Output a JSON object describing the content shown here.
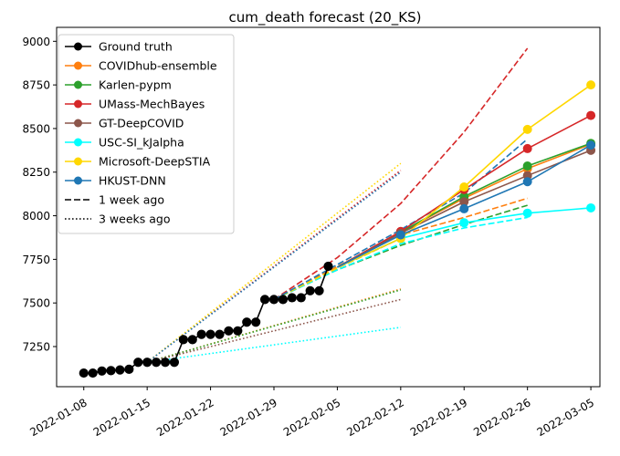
{
  "chart_data": {
    "type": "line",
    "title": "cum_death forecast (20_KS)",
    "xlabel": "",
    "ylabel": "",
    "xlim": [
      "2022-01-05",
      "2022-03-06"
    ],
    "ylim": [
      7020,
      9080
    ],
    "x_ticks": [
      "2022-01-08",
      "2022-01-15",
      "2022-01-22",
      "2022-01-29",
      "2022-02-05",
      "2022-02-12",
      "2022-02-19",
      "2022-02-26",
      "2022-03-05"
    ],
    "y_ticks": [
      7250,
      7500,
      7750,
      8000,
      8250,
      8500,
      8750,
      9000
    ],
    "legend_position": "top-left",
    "legend": [
      {
        "label": "Ground truth",
        "color": "#000000",
        "style": "solid",
        "marker": true
      },
      {
        "label": "COVIDhub-ensemble",
        "color": "#ff7f0e",
        "style": "solid",
        "marker": true
      },
      {
        "label": "Karlen-pypm",
        "color": "#2ca02c",
        "style": "solid",
        "marker": true
      },
      {
        "label": "UMass-MechBayes",
        "color": "#d62728",
        "style": "solid",
        "marker": true
      },
      {
        "label": "GT-DeepCOVID",
        "color": "#8c564b",
        "style": "solid",
        "marker": true
      },
      {
        "label": "USC-SI_kJalpha",
        "color": "#00ffff",
        "style": "solid",
        "marker": true
      },
      {
        "label": "Microsoft-DeepSTIA",
        "color": "#ffd700",
        "style": "solid",
        "marker": true
      },
      {
        "label": "HKUST-DNN",
        "color": "#1f77b4",
        "style": "solid",
        "marker": true
      },
      {
        "label": "1 week ago",
        "color": "#000000",
        "style": "dashed",
        "marker": false
      },
      {
        "label": "3 weeks ago",
        "color": "#000000",
        "style": "dotted",
        "marker": false
      }
    ],
    "ground_truth": {
      "color": "#000000",
      "points": [
        [
          "2022-01-08",
          7098
        ],
        [
          "2022-01-09",
          7098
        ],
        [
          "2022-01-10",
          7110
        ],
        [
          "2022-01-11",
          7112
        ],
        [
          "2022-01-12",
          7116
        ],
        [
          "2022-01-13",
          7120
        ],
        [
          "2022-01-14",
          7160
        ],
        [
          "2022-01-15",
          7160
        ],
        [
          "2022-01-16",
          7160
        ],
        [
          "2022-01-17",
          7160
        ],
        [
          "2022-01-18",
          7160
        ],
        [
          "2022-01-19",
          7290
        ],
        [
          "2022-01-20",
          7290
        ],
        [
          "2022-01-21",
          7320
        ],
        [
          "2022-01-22",
          7320
        ],
        [
          "2022-01-23",
          7320
        ],
        [
          "2022-01-24",
          7340
        ],
        [
          "2022-01-25",
          7340
        ],
        [
          "2022-01-26",
          7390
        ],
        [
          "2022-01-27",
          7390
        ],
        [
          "2022-01-28",
          7520
        ],
        [
          "2022-01-29",
          7520
        ],
        [
          "2022-01-30",
          7520
        ],
        [
          "2022-01-31",
          7530
        ],
        [
          "2022-02-01",
          7530
        ],
        [
          "2022-02-02",
          7570
        ],
        [
          "2022-02-03",
          7570
        ],
        [
          "2022-02-04",
          7710
        ]
      ]
    },
    "series": [
      {
        "name": "COVIDhub-ensemble",
        "color": "#ff7f0e",
        "current": [
          [
            "2022-02-05",
            7705
          ],
          [
            "2022-02-12",
            7905
          ],
          [
            "2022-02-19",
            8100
          ],
          [
            "2022-02-26",
            8270
          ],
          [
            "2022-03-05",
            8410
          ]
        ],
        "week_ago": [
          [
            "2022-01-29",
            7520
          ],
          [
            "2022-02-05",
            7710
          ],
          [
            "2022-02-12",
            7890
          ],
          [
            "2022-02-19",
            7990
          ],
          [
            "2022-02-26",
            8100
          ]
        ],
        "three_weeks_ago": [
          [
            "2022-01-15",
            7160
          ],
          [
            "2022-02-12",
            7580
          ]
        ]
      },
      {
        "name": "Karlen-pypm",
        "color": "#2ca02c",
        "current": [
          [
            "2022-02-05",
            7705
          ],
          [
            "2022-02-12",
            7905
          ],
          [
            "2022-02-19",
            8110
          ],
          [
            "2022-02-26",
            8285
          ],
          [
            "2022-03-05",
            8415
          ]
        ],
        "week_ago": [
          [
            "2022-01-29",
            7520
          ],
          [
            "2022-02-05",
            7690
          ],
          [
            "2022-02-12",
            7830
          ],
          [
            "2022-02-19",
            7950
          ],
          [
            "2022-02-26",
            8060
          ]
        ],
        "three_weeks_ago": [
          [
            "2022-01-15",
            7160
          ],
          [
            "2022-02-12",
            7575
          ]
        ]
      },
      {
        "name": "UMass-MechBayes",
        "color": "#d62728",
        "current": [
          [
            "2022-02-05",
            7705
          ],
          [
            "2022-02-12",
            7910
          ],
          [
            "2022-02-19",
            8150
          ],
          [
            "2022-02-26",
            8385
          ],
          [
            "2022-03-05",
            8575
          ]
        ],
        "week_ago": [
          [
            "2022-01-29",
            7520
          ],
          [
            "2022-02-05",
            7760
          ],
          [
            "2022-02-12",
            8070
          ],
          [
            "2022-02-19",
            8480
          ],
          [
            "2022-02-26",
            8960
          ]
        ],
        "three_weeks_ago": [
          [
            "2022-01-15",
            7160
          ],
          [
            "2022-02-12",
            8260
          ]
        ]
      },
      {
        "name": "GT-DeepCOVID",
        "color": "#8c564b",
        "current": [
          [
            "2022-02-05",
            7705
          ],
          [
            "2022-02-12",
            7900
          ],
          [
            "2022-02-19",
            8080
          ],
          [
            "2022-02-26",
            8230
          ],
          [
            "2022-03-05",
            8375
          ]
        ],
        "week_ago": [
          [
            "2022-01-29",
            7520
          ],
          [
            "2022-02-05",
            7700
          ],
          [
            "2022-02-12",
            7870
          ]
        ],
        "three_weeks_ago": [
          [
            "2022-01-15",
            7160
          ],
          [
            "2022-02-12",
            7520
          ]
        ]
      },
      {
        "name": "USC-SI_kJalpha",
        "color": "#00ffff",
        "current": [
          [
            "2022-02-05",
            7705
          ],
          [
            "2022-02-12",
            7870
          ],
          [
            "2022-02-19",
            7960
          ],
          [
            "2022-02-26",
            8015
          ],
          [
            "2022-03-05",
            8045
          ]
        ],
        "week_ago": [
          [
            "2022-01-29",
            7520
          ],
          [
            "2022-02-05",
            7690
          ],
          [
            "2022-02-12",
            7840
          ],
          [
            "2022-02-19",
            7930
          ],
          [
            "2022-02-26",
            7990
          ]
        ],
        "three_weeks_ago": [
          [
            "2022-01-15",
            7160
          ],
          [
            "2022-02-12",
            7360
          ]
        ]
      },
      {
        "name": "Microsoft-DeepSTIA",
        "color": "#ffd700",
        "current": [
          [
            "2022-02-05",
            7705
          ],
          [
            "2022-02-12",
            7870
          ],
          [
            "2022-02-19",
            8165
          ],
          [
            "2022-02-26",
            8495
          ],
          [
            "2022-03-05",
            8750
          ]
        ],
        "week_ago": [
          [
            "2022-01-29",
            7520
          ],
          [
            "2022-02-05",
            7700
          ],
          [
            "2022-02-12",
            7870
          ]
        ],
        "three_weeks_ago": [
          [
            "2022-01-15",
            7160
          ],
          [
            "2022-02-12",
            8300
          ]
        ]
      },
      {
        "name": "HKUST-DNN",
        "color": "#1f77b4",
        "current": [
          [
            "2022-02-05",
            7705
          ],
          [
            "2022-02-12",
            7890
          ],
          [
            "2022-02-19",
            8040
          ],
          [
            "2022-02-26",
            8195
          ],
          [
            "2022-03-05",
            8405
          ]
        ],
        "week_ago": [
          [
            "2022-01-29",
            7520
          ],
          [
            "2022-02-05",
            7720
          ],
          [
            "2022-02-12",
            7920
          ],
          [
            "2022-02-19",
            8130
          ],
          [
            "2022-02-26",
            8440
          ]
        ],
        "three_weeks_ago": [
          [
            "2022-01-15",
            7160
          ],
          [
            "2022-02-12",
            8250
          ]
        ]
      }
    ]
  }
}
